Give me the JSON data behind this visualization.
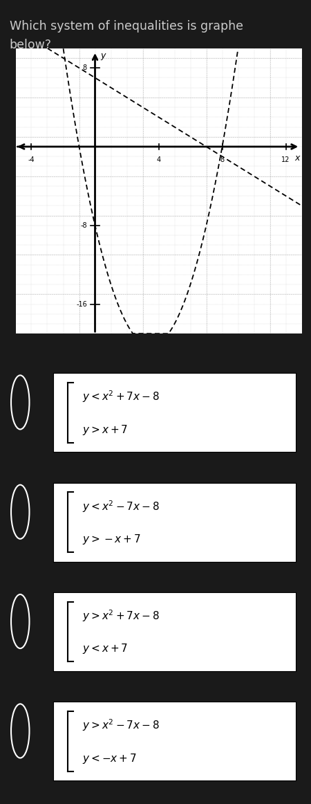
{
  "title_line1": "Which system of inequalities is graphe",
  "title_line2": "below?",
  "title_color": "#cccccc",
  "bg_color": "#1a1a1a",
  "graph_bg": "#ffffff",
  "xmin": -5,
  "xmax": 13,
  "ymin": -19,
  "ymax": 10,
  "xtick_vals": [
    -4,
    4,
    8,
    12
  ],
  "ytick_vals": [
    -8,
    -16,
    8
  ],
  "xlabel": "x",
  "ylabel": "y",
  "parabola_coeffs": [
    1,
    -7,
    -8
  ],
  "line_slope": -1,
  "line_intercept": 7,
  "curve_color": "#000000",
  "options": [
    {
      "line1": "y < x^2 + 7x - 8",
      "line2": "y > x + 7"
    },
    {
      "line1": "y < x^2 - 7x - 8",
      "line2": "y > -x + 7"
    },
    {
      "line1": "y > x^2 + 7x - 8",
      "line2": "y < x + 7"
    },
    {
      "line1": "y > x^2 - 7x - 8",
      "line2": "y < -x + 7"
    }
  ],
  "option_bg": "#ffffff",
  "option_text_color": "#000000",
  "option_border_color": "#000000",
  "separator_color": "#555555"
}
